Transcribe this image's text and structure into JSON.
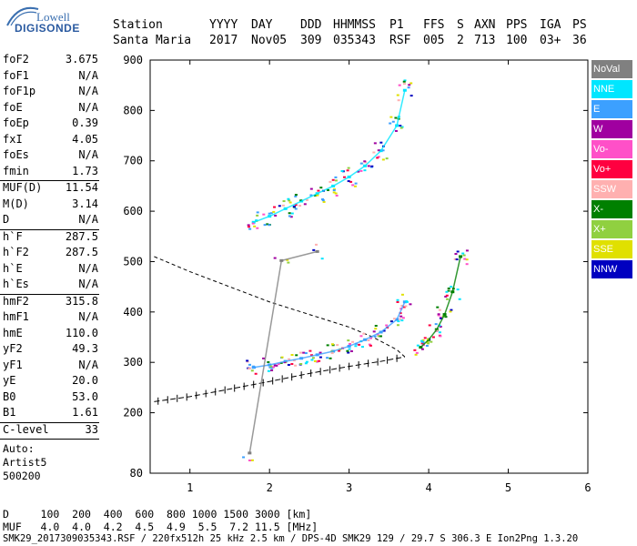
{
  "logo": {
    "line1": "Lowell",
    "line2": "DIGISONDE"
  },
  "header": {
    "labels": [
      "Station",
      "YYYY",
      "DAY",
      "DDD",
      "HHMMSS",
      "P1",
      "FFS",
      "S",
      "AXN",
      "PPS",
      "IGA",
      "PS"
    ],
    "values": [
      "Santa Maria",
      "2017",
      "Nov05",
      "309",
      "035343",
      "RSF",
      "005",
      "2",
      "713",
      "100",
      "03+",
      "36"
    ]
  },
  "params": [
    {
      "label": "foF2",
      "value": "3.675"
    },
    {
      "label": "foF1",
      "value": "N/A"
    },
    {
      "label": "foF1p",
      "value": "N/A"
    },
    {
      "label": "foE",
      "value": "N/A"
    },
    {
      "label": "foEp",
      "value": "0.39"
    },
    {
      "label": "fxI",
      "value": "4.05"
    },
    {
      "label": "foEs",
      "value": "N/A"
    },
    {
      "label": "fmin",
      "value": "1.73"
    },
    {
      "sep": true
    },
    {
      "label": "MUF(D)",
      "value": "11.54"
    },
    {
      "label": "M(D)",
      "value": "3.14"
    },
    {
      "label": "D",
      "value": "N/A"
    },
    {
      "sep": true
    },
    {
      "label": "h`F",
      "value": "287.5"
    },
    {
      "label": "h`F2",
      "value": "287.5"
    },
    {
      "label": "h`E",
      "value": "N/A"
    },
    {
      "label": "h`Es",
      "value": "N/A"
    },
    {
      "sep": true
    },
    {
      "label": "hmF2",
      "value": "315.8"
    },
    {
      "label": "hmF1",
      "value": "N/A"
    },
    {
      "label": "hmE",
      "value": "110.0"
    },
    {
      "label": "yF2",
      "value": "49.3"
    },
    {
      "label": "yF1",
      "value": "N/A"
    },
    {
      "label": "yE",
      "value": "20.0"
    },
    {
      "label": "B0",
      "value": "53.0"
    },
    {
      "label": "B1",
      "value": "1.61"
    },
    {
      "sep": true
    },
    {
      "label": "C-level",
      "value": "33"
    },
    {
      "sep": true
    }
  ],
  "autoscale": {
    "line1": "Auto:",
    "line2": "Artist5",
    "line3": "500200"
  },
  "legend": [
    {
      "label": "NoVal",
      "color": "#808080"
    },
    {
      "label": "NNE",
      "color": "#00e6ff"
    },
    {
      "label": "E",
      "color": "#3ca0ff"
    },
    {
      "label": "W",
      "color": "#a000a0"
    },
    {
      "label": "Vo-",
      "color": "#ff50c8"
    },
    {
      "label": "Vo+",
      "color": "#ff0040"
    },
    {
      "label": "SSW",
      "color": "#ffb0b0"
    },
    {
      "label": "X-",
      "color": "#008000"
    },
    {
      "label": "X+",
      "color": "#90d040"
    },
    {
      "label": "SSE",
      "color": "#e0e000"
    },
    {
      "label": "NNW",
      "color": "#0000c0"
    }
  ],
  "footer": {
    "d_line": "D     100  200  400  600  800 1000 1500 3000 [km]",
    "muf_line": "MUF   4.0  4.0  4.2  4.5  4.9  5.5  7.2 11.5 [MHz]",
    "file_line": "SMK29_2017309035343.RSF / 220fx512h 25 kHz 2.5 km / DPS-4D SMK29 129 / 29.7 S 306.3 E Ion2Png 1.3.20"
  },
  "chart_data": {
    "type": "scatter",
    "title": "",
    "xlabel": "",
    "ylabel": "",
    "xlim": [
      0.5,
      6
    ],
    "ylim": [
      80,
      900
    ],
    "xticks": [
      1,
      2,
      3,
      4,
      5,
      6
    ],
    "yticks": [
      80,
      200,
      300,
      400,
      500,
      600,
      700,
      800,
      900
    ],
    "grid": false,
    "legend_placement": "right",
    "series": [
      {
        "name": "F2 trace (O)",
        "color": "#3ca0ff",
        "x": [
          1.8,
          2.0,
          2.2,
          2.4,
          2.6,
          2.8,
          3.0,
          3.2,
          3.4,
          3.6,
          3.7
        ],
        "y": [
          290,
          295,
          302,
          308,
          315,
          322,
          332,
          345,
          360,
          385,
          420
        ]
      },
      {
        "name": "F2 trace (X)",
        "color": "#008000",
        "x": [
          3.9,
          4.0,
          4.1,
          4.2,
          4.3,
          4.4
        ],
        "y": [
          330,
          345,
          365,
          395,
          440,
          510
        ]
      },
      {
        "name": "Multiple echo",
        "color": "#00e6ff",
        "x": [
          1.8,
          2.0,
          2.2,
          2.4,
          2.6,
          2.8,
          3.0,
          3.2,
          3.4,
          3.6,
          3.7
        ],
        "y": [
          578,
          590,
          605,
          620,
          635,
          650,
          668,
          690,
          720,
          770,
          840
        ]
      },
      {
        "name": "Es / spread",
        "color": "#808080",
        "x": [
          1.75,
          2.15,
          2.6
        ],
        "y": [
          120,
          502,
          520
        ]
      }
    ],
    "profile": {
      "x": [
        0.55,
        1.0,
        1.5,
        2.0,
        2.5,
        3.0,
        3.4,
        3.7
      ],
      "y": [
        222,
        232,
        247,
        262,
        278,
        292,
        302,
        311
      ]
    },
    "muf_curve": {
      "x": [
        0.55,
        1.0,
        1.5,
        2.0,
        2.5,
        3.0,
        3.3,
        3.6,
        3.7
      ],
      "y": [
        510,
        480,
        450,
        420,
        395,
        370,
        350,
        325,
        311
      ]
    }
  }
}
